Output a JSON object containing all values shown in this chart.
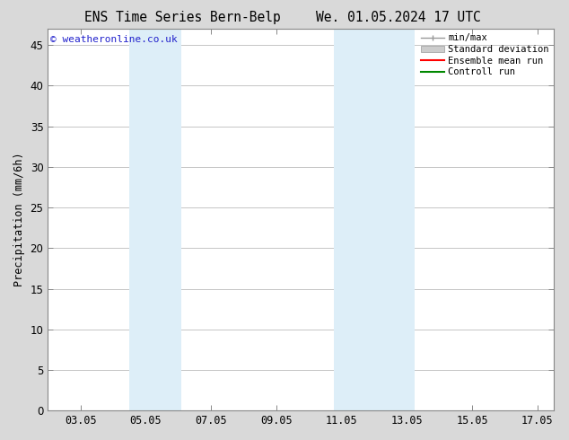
{
  "title_left": "ENS Time Series Bern-Belp",
  "title_right": "We. 01.05.2024 17 UTC",
  "ylabel": "Precipitation (mm/6h)",
  "watermark": "© weatheronline.co.uk",
  "watermark_color": "#2222cc",
  "xlim_min": 2.0,
  "xlim_max": 17.5,
  "ylim_min": 0,
  "ylim_max": 47,
  "yticks": [
    0,
    5,
    10,
    15,
    20,
    25,
    30,
    35,
    40,
    45
  ],
  "xtick_labels": [
    "03.05",
    "05.05",
    "07.05",
    "09.05",
    "11.05",
    "13.05",
    "15.05",
    "17.05"
  ],
  "xtick_positions": [
    3,
    5,
    7,
    9,
    11,
    13,
    15,
    17
  ],
  "shaded_regions": [
    {
      "xmin": 4.5,
      "xmax": 5.5,
      "color": "#ddeef8"
    },
    {
      "xmin": 5.5,
      "xmax": 6.1,
      "color": "#ddeef8"
    },
    {
      "xmin": 10.75,
      "xmax": 11.75,
      "color": "#ddeef8"
    },
    {
      "xmin": 11.75,
      "xmax": 13.25,
      "color": "#ddeef8"
    }
  ],
  "legend_entries": [
    {
      "label": "min/max",
      "color": "#aaaaaa",
      "style": "line_with_caps"
    },
    {
      "label": "Standard deviation",
      "color": "#ccddee",
      "style": "filled"
    },
    {
      "label": "Ensemble mean run",
      "color": "#ff0000",
      "style": "line"
    },
    {
      "label": "Controll run",
      "color": "#008800",
      "style": "line"
    }
  ],
  "bg_color": "#d9d9d9",
  "plot_bg_color": "#ffffff",
  "grid_color": "#bbbbbb",
  "spine_color": "#888888",
  "tick_label_fontsize": 8.5,
  "axis_label_fontsize": 8.5,
  "title_fontsize": 10.5,
  "legend_fontsize": 7.5
}
